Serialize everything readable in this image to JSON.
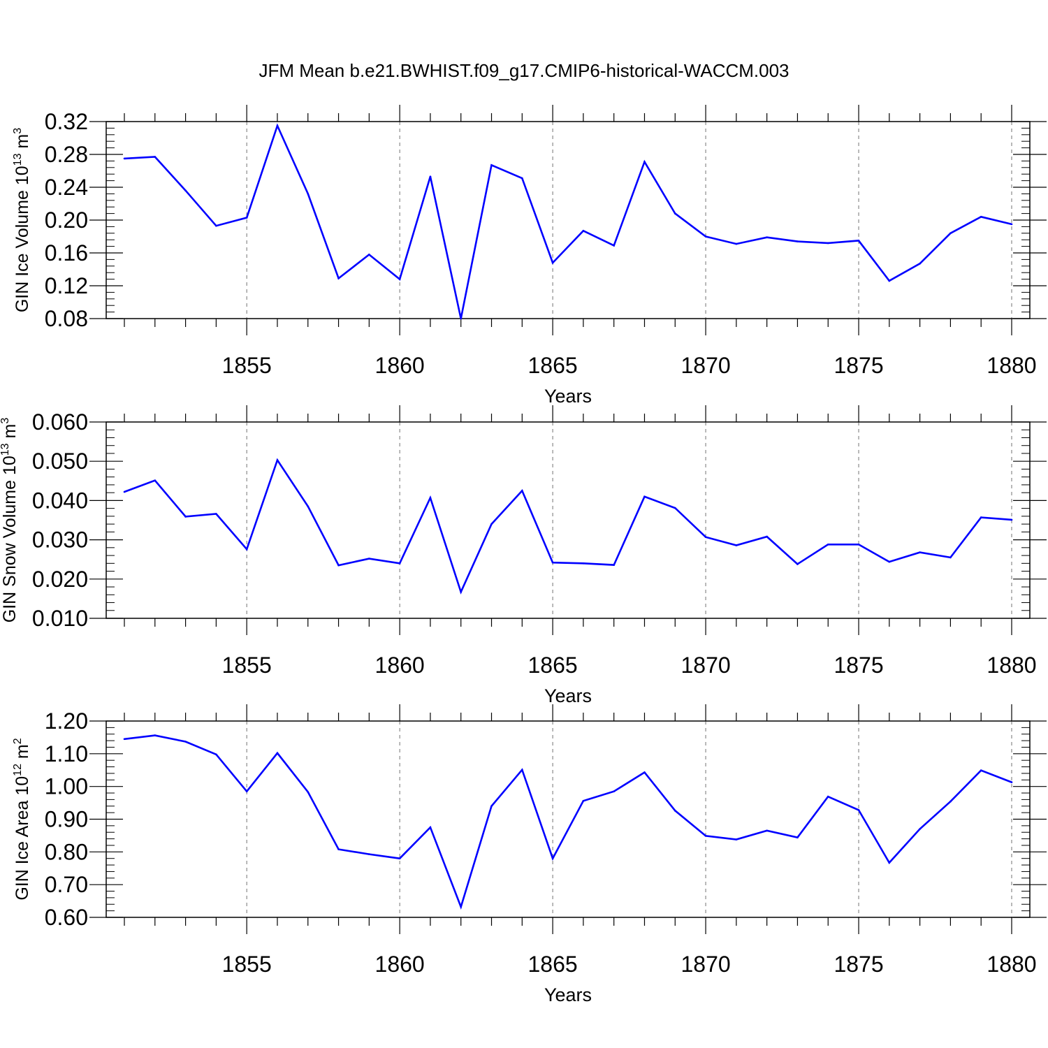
{
  "title": "JFM Mean b.e21.BWHIST.f09_g17.CMIP6-historical-WACCM.003",
  "line_color": "#0000ff",
  "grid_color": "#000000",
  "chart_data": [
    {
      "type": "line",
      "xlabel": "Years",
      "ylabel_main": "GIN Ice Volume 10",
      "ylabel_exp": "13",
      "ylabel_unit": " m",
      "ylabel_unit_exp": "3",
      "xlim": [
        1851,
        1880
      ],
      "ylim": [
        0.08,
        0.32
      ],
      "yticks": [
        "0.08",
        "0.12",
        "0.16",
        "0.20",
        "0.24",
        "0.28",
        "0.32"
      ],
      "xticks": [
        1855,
        1860,
        1865,
        1870,
        1875,
        1880
      ],
      "grid": "vertical dashed at major x ticks",
      "x": [
        1851,
        1852,
        1853,
        1854,
        1855,
        1856,
        1857,
        1858,
        1859,
        1860,
        1861,
        1862,
        1863,
        1864,
        1865,
        1866,
        1867,
        1868,
        1869,
        1870,
        1871,
        1872,
        1873,
        1874,
        1875,
        1876,
        1877,
        1878,
        1879,
        1880
      ],
      "values": [
        0.275,
        0.277,
        0.236,
        0.193,
        0.203,
        0.315,
        0.232,
        0.129,
        0.158,
        0.128,
        0.253,
        0.08,
        0.267,
        0.251,
        0.148,
        0.187,
        0.169,
        0.271,
        0.208,
        0.18,
        0.171,
        0.179,
        0.174,
        0.172,
        0.175,
        0.126,
        0.147,
        0.184,
        0.204,
        0.195
      ]
    },
    {
      "type": "line",
      "xlabel": "Years",
      "ylabel_main": "GIN Snow Volume 10",
      "ylabel_exp": "13",
      "ylabel_unit": " m",
      "ylabel_unit_exp": "3",
      "xlim": [
        1851,
        1880
      ],
      "ylim": [
        0.01,
        0.06
      ],
      "yticks": [
        "0.010",
        "0.020",
        "0.030",
        "0.040",
        "0.050",
        "0.060"
      ],
      "xticks": [
        1855,
        1860,
        1865,
        1870,
        1875,
        1880
      ],
      "grid": "vertical dashed at major x ticks",
      "x": [
        1851,
        1852,
        1853,
        1854,
        1855,
        1856,
        1857,
        1858,
        1859,
        1860,
        1861,
        1862,
        1863,
        1864,
        1865,
        1866,
        1867,
        1868,
        1869,
        1870,
        1871,
        1872,
        1873,
        1874,
        1875,
        1876,
        1877,
        1878,
        1879,
        1880
      ],
      "values": [
        0.0422,
        0.0451,
        0.0359,
        0.0366,
        0.0276,
        0.0503,
        0.0385,
        0.0235,
        0.0252,
        0.024,
        0.0407,
        0.0167,
        0.034,
        0.0425,
        0.0242,
        0.024,
        0.0236,
        0.041,
        0.0381,
        0.0307,
        0.0286,
        0.0308,
        0.0238,
        0.0288,
        0.0288,
        0.0244,
        0.0268,
        0.0255,
        0.0357,
        0.0351
      ]
    },
    {
      "type": "line",
      "xlabel": "Years",
      "ylabel_main": "GIN Ice Area 10",
      "ylabel_exp": "12",
      "ylabel_unit": " m",
      "ylabel_unit_exp": "2",
      "xlim": [
        1851,
        1880
      ],
      "ylim": [
        0.6,
        1.2
      ],
      "yticks": [
        "0.60",
        "0.70",
        "0.80",
        "0.90",
        "1.00",
        "1.10",
        "1.20"
      ],
      "xticks": [
        1855,
        1860,
        1865,
        1870,
        1875,
        1880
      ],
      "grid": "vertical dashed at major x ticks",
      "x": [
        1851,
        1852,
        1853,
        1854,
        1855,
        1856,
        1857,
        1858,
        1859,
        1860,
        1861,
        1862,
        1863,
        1864,
        1865,
        1866,
        1867,
        1868,
        1869,
        1870,
        1871,
        1872,
        1873,
        1874,
        1875,
        1876,
        1877,
        1878,
        1879,
        1880
      ],
      "values": [
        1.145,
        1.156,
        1.137,
        1.098,
        0.985,
        1.102,
        0.983,
        0.808,
        0.793,
        0.78,
        0.875,
        0.632,
        0.94,
        1.051,
        0.78,
        0.956,
        0.985,
        1.043,
        0.926,
        0.849,
        0.838,
        0.865,
        0.844,
        0.969,
        0.928,
        0.767,
        0.87,
        0.954,
        1.049,
        1.013
      ]
    }
  ]
}
